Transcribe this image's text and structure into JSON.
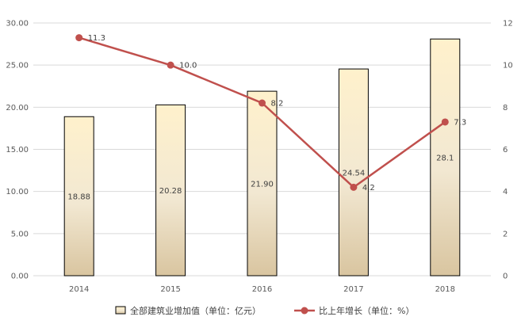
{
  "chart_data": {
    "type": "bar+line",
    "categories": [
      "2014",
      "2015",
      "2016",
      "2017",
      "2018"
    ],
    "series": [
      {
        "name": "全部建筑业增加值（单位：亿元）",
        "type": "bar",
        "axis": "left",
        "values": [
          18.88,
          20.28,
          21.9,
          24.54,
          28.1
        ],
        "labels": [
          "18.88",
          "20.28",
          "21.90",
          "24.54",
          "28.1"
        ]
      },
      {
        "name": "比上年增长（单位：%）",
        "type": "line",
        "axis": "right",
        "values": [
          11.3,
          10.0,
          8.2,
          4.2,
          7.3
        ],
        "labels": [
          "11.3",
          "10.0",
          "8.2",
          "4.2",
          "7.3"
        ]
      }
    ],
    "left_axis": {
      "ylim": [
        0,
        30
      ],
      "ticks": [
        "0.00",
        "5.00",
        "10.00",
        "15.00",
        "20.00",
        "25.00",
        "30.00"
      ]
    },
    "right_axis": {
      "ylim": [
        0,
        12
      ],
      "ticks": [
        "0",
        "2",
        "4",
        "6",
        "8",
        "10",
        "12"
      ]
    },
    "grid": true,
    "legend_position": "bottom",
    "colors": {
      "bar_top": "#fff1cc",
      "bar_bottom": "#d9c5a0",
      "bar_edge": "#000000",
      "line": "#c0504d",
      "grid": "#d9d9d9"
    }
  }
}
